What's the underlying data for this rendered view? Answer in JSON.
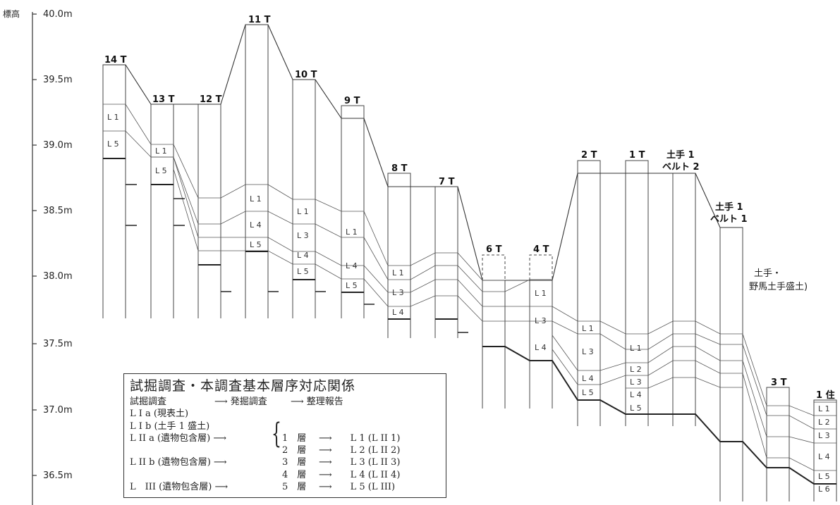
{
  "axis": {
    "label": "標高",
    "ticks": [
      "40.0m",
      "39.5m",
      "39.0m",
      "38.5m",
      "38.0m",
      "37.5m",
      "37.0m",
      "36.5m"
    ]
  },
  "trenches": [
    {
      "id": "t14",
      "label": "14 T",
      "layers": [
        "L 1",
        "L 5"
      ]
    },
    {
      "id": "t13",
      "label": "13 T",
      "layers": [
        "L 1",
        "L 5"
      ]
    },
    {
      "id": "t12",
      "label": "12 T",
      "layers": []
    },
    {
      "id": "t11",
      "label": "11 T",
      "layers": [
        "L 1",
        "L 4",
        "L 5"
      ]
    },
    {
      "id": "t10",
      "label": "10 T",
      "layers": [
        "L 1",
        "L 3",
        "L 4",
        "L 5"
      ]
    },
    {
      "id": "t9",
      "label": "9 T",
      "layers": [
        "L 1",
        "L 4",
        "L 5"
      ]
    },
    {
      "id": "t8",
      "label": "8 T",
      "layers": [
        "L 1",
        "L 3",
        "L 4"
      ]
    },
    {
      "id": "t7",
      "label": "7 T",
      "layers": []
    },
    {
      "id": "t6",
      "label": "6 T",
      "layers": []
    },
    {
      "id": "t4",
      "label": "4 T",
      "layers": [
        "L 1",
        "L 3",
        "L 4"
      ]
    },
    {
      "id": "t2",
      "label": "2 T",
      "layers": [
        "L 1",
        "L 3",
        "L 4",
        "L 5"
      ]
    },
    {
      "id": "t1",
      "label": "1 T",
      "layers": [
        "L 1",
        "L 2",
        "L 3",
        "L 4",
        "L 5"
      ]
    },
    {
      "id": "dote1b2",
      "label_lines": [
        "土手 1",
        "ベルト 2"
      ],
      "layers": []
    },
    {
      "id": "dote1b1",
      "label_lines": [
        "土手 1",
        "ベルト 1"
      ],
      "layers": []
    },
    {
      "id": "t3",
      "label": "3 T",
      "layers": []
    },
    {
      "id": "j1",
      "label": "1 住",
      "layers": [
        "L 1",
        "L 2",
        "L 3",
        "L 4",
        "L 5",
        "L 6"
      ]
    }
  ],
  "annotation": [
    "土手・",
    "野馬土手盛土)"
  ],
  "legend": {
    "title": "試掘調査・本調査基本層序対応関係",
    "header": [
      "試掘調査",
      "⟶ 発掘調査",
      "⟶ 整理報告"
    ],
    "rows": [
      {
        "trial": "L I a (現表土)",
        "excavation": "",
        "report": ""
      },
      {
        "trial": "L I b (土手 1 盛土)",
        "excavation": "",
        "report": ""
      },
      {
        "trial": "L II a (遺物包含層) ⟶",
        "excavation": "1　層",
        "report": "⟶　　L 1 (L II 1)"
      },
      {
        "trial": "",
        "excavation": "2　層",
        "report": "⟶　　L 2 (L II 2)"
      },
      {
        "trial": "L II b (遺物包含層) ⟶",
        "excavation": "3　層",
        "report": "⟶　　L 3 (L II 3)"
      },
      {
        "trial": "",
        "excavation": "4　層",
        "report": "⟶　　L 4 (L II 4)"
      },
      {
        "trial": "L　III (遺物包含層) ⟶",
        "excavation": "5　層",
        "report": "⟶　　L 5 (L III)"
      }
    ]
  }
}
